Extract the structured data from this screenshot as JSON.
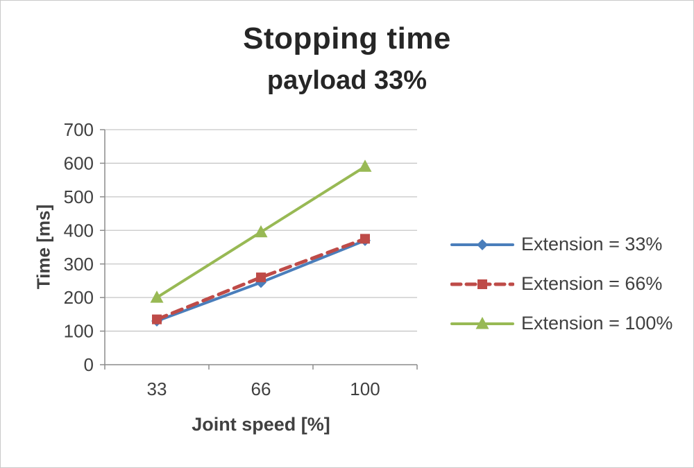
{
  "figure": {
    "title": "Stopping time",
    "subtitle": "payload 33%"
  },
  "chart_data": {
    "type": "line",
    "title": "Stopping time",
    "subtitle": "payload 33%",
    "xlabel": "Joint speed [%]",
    "ylabel": "Time [ms]",
    "categories": [
      "33",
      "66",
      "100"
    ],
    "y_ticks": [
      0,
      100,
      200,
      300,
      400,
      500,
      600,
      700
    ],
    "ylim": [
      0,
      700
    ],
    "grid": "horizontal",
    "legend_position": "right",
    "series": [
      {
        "name": "Extension = 33%",
        "values": [
          130,
          245,
          370
        ],
        "color": "#4a7ebb",
        "marker": "diamond",
        "dash": "solid"
      },
      {
        "name": "Extension = 66%",
        "values": [
          135,
          260,
          375
        ],
        "color": "#be4b48",
        "marker": "square",
        "dash": "dashed"
      },
      {
        "name": "Extension = 100%",
        "values": [
          200,
          395,
          590
        ],
        "color": "#98b954",
        "marker": "triangle",
        "dash": "solid"
      }
    ],
    "colors": {
      "gridline": "#c6c6c6",
      "axis": "#8c8c8c",
      "text": "#404040"
    }
  }
}
